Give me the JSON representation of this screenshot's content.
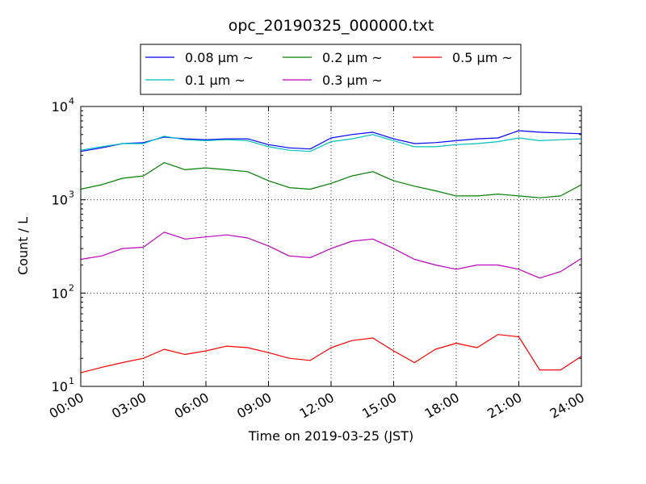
{
  "chart_data": {
    "type": "line",
    "title": "opc_20190325_000000.txt",
    "xlabel": "Time on 2019-03-25 (JST)",
    "ylabel": "Count / L",
    "y_scale": "log",
    "ylim": [
      10,
      10000
    ],
    "xlim": [
      "00:00",
      "24:00"
    ],
    "grid": true,
    "legend_position": "top-center",
    "x_ticks": [
      "00:00",
      "03:00",
      "06:00",
      "09:00",
      "12:00",
      "15:00",
      "18:00",
      "21:00",
      "24:00"
    ],
    "y_ticks": [
      {
        "base": "10",
        "exp": "1",
        "value": 10
      },
      {
        "base": "10",
        "exp": "2",
        "value": 100
      },
      {
        "base": "10",
        "exp": "3",
        "value": 1000
      },
      {
        "base": "10",
        "exp": "4",
        "value": 10000
      }
    ],
    "x": [
      "00:00",
      "01:00",
      "02:00",
      "03:00",
      "04:00",
      "05:00",
      "06:00",
      "07:00",
      "08:00",
      "09:00",
      "10:00",
      "11:00",
      "12:00",
      "13:00",
      "14:00",
      "15:00",
      "16:00",
      "17:00",
      "18:00",
      "19:00",
      "20:00",
      "21:00",
      "22:00",
      "23:00",
      "24:00"
    ],
    "series": [
      {
        "name": "0.08 μm ~",
        "color": "#0000ff",
        "values": [
          3300,
          3600,
          4000,
          4100,
          4700,
          4500,
          4400,
          4500,
          4500,
          3900,
          3600,
          3500,
          4600,
          5000,
          5300,
          4500,
          4000,
          4100,
          4300,
          4500,
          4600,
          5500,
          5300,
          5200,
          5100
        ]
      },
      {
        "name": "0.1 μm ~",
        "color": "#00bfbf",
        "values": [
          3400,
          3700,
          4000,
          4000,
          4800,
          4400,
          4300,
          4400,
          4300,
          3700,
          3400,
          3300,
          4200,
          4500,
          5000,
          4300,
          3700,
          3700,
          3900,
          4000,
          4200,
          4600,
          4300,
          4400,
          4500
        ]
      },
      {
        "name": "0.2 μm ~",
        "color": "#008000",
        "values": [
          1300,
          1450,
          1700,
          1800,
          2500,
          2100,
          2200,
          2100,
          2000,
          1600,
          1350,
          1300,
          1500,
          1800,
          2000,
          1600,
          1400,
          1250,
          1100,
          1100,
          1150,
          1100,
          1050,
          1100,
          1450
        ]
      },
      {
        "name": "0.3 μm ~",
        "color": "#bf00bf",
        "values": [
          230,
          250,
          300,
          310,
          450,
          380,
          400,
          420,
          390,
          320,
          250,
          240,
          300,
          360,
          380,
          300,
          230,
          200,
          180,
          200,
          200,
          180,
          145,
          170,
          235
        ]
      },
      {
        "name": "0.5 μm ~",
        "color": "#ff0000",
        "values": [
          14,
          16,
          18,
          20,
          25,
          22,
          24,
          27,
          26,
          23,
          20,
          19,
          26,
          31,
          33,
          24,
          18,
          25,
          29,
          26,
          36,
          34,
          15,
          15,
          21
        ]
      }
    ]
  }
}
